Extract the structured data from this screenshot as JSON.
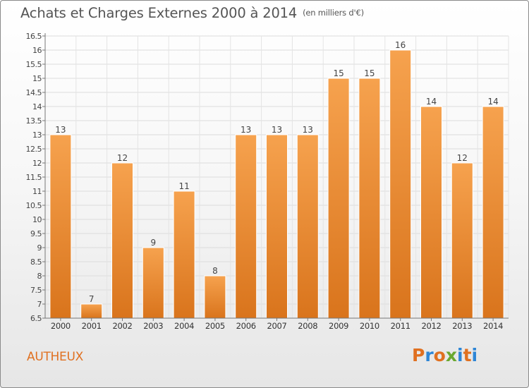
{
  "header": {
    "title": "Achats et Charges Externes 2000 à 2014",
    "subtitle": "(en milliers d'€)"
  },
  "footer": {
    "commune": "AUTHEUX",
    "logo_text": "Proxiti"
  },
  "colors": {
    "bar_light": "#f6a24e",
    "bar_dark": "#d9741c",
    "commune_text": "#e07020",
    "logo": [
      "#e07020",
      "#2e86d6",
      "#e07020",
      "#6aa830",
      "#2e86d6",
      "#e07020",
      "#2e86d6"
    ]
  },
  "chart_data": {
    "type": "bar",
    "title": "Achats et Charges Externes 2000 à 2014",
    "subtitle": "(en milliers d'€)",
    "categories": [
      "2000",
      "2001",
      "2002",
      "2003",
      "2004",
      "2005",
      "2006",
      "2007",
      "2008",
      "2009",
      "2010",
      "2011",
      "2012",
      "2013",
      "2014"
    ],
    "values": [
      13,
      7,
      12,
      9,
      11,
      8,
      13,
      13,
      13,
      15,
      15,
      16,
      14,
      12,
      14
    ],
    "data_labels": [
      "13",
      "7",
      "12",
      "9",
      "11",
      "8",
      "13",
      "13",
      "13",
      "15",
      "15",
      "16",
      "14",
      "12",
      "14"
    ],
    "ylim": [
      6.5,
      16.5
    ],
    "yticks": [
      "6.5",
      "7",
      "7.5",
      "8",
      "8.5",
      "9",
      "9.5",
      "10",
      "10.5",
      "11",
      "11.5",
      "12",
      "12.5",
      "13",
      "13.5",
      "14",
      "14.5",
      "15",
      "15.5",
      "16",
      "16.5"
    ],
    "grid": true,
    "legend": "none"
  }
}
